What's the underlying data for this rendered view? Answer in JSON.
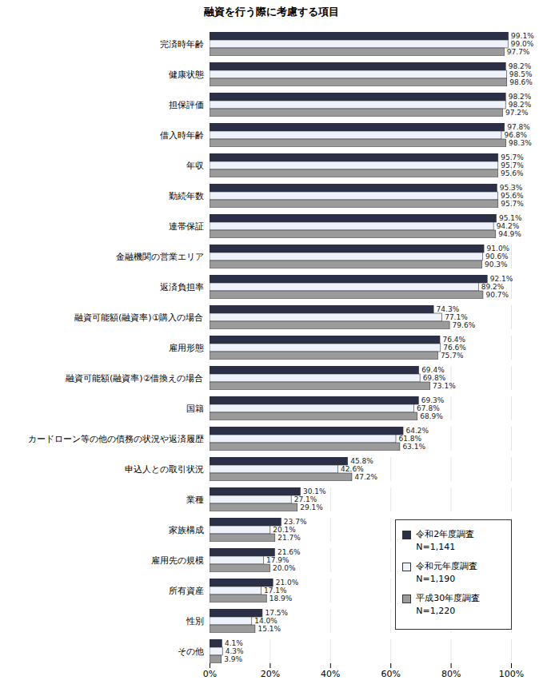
{
  "chart_data": {
    "type": "bar",
    "title": "融資を行う際に考慮する項目",
    "orientation": "horizontal",
    "categories": [
      "完済時年齢",
      "健康状態",
      "担保評価",
      "借入時年齢",
      "年収",
      "勤続年数",
      "連帯保証",
      "金融機関の営業エリア",
      "返済負担率",
      "融資可能額(融資率)①購入の場合",
      "雇用形態",
      "融資可能額(融資率)②借換えの場合",
      "国籍",
      "カードローン等の他の債務の状況や返済履歴",
      "申込人との取引状況",
      "業種",
      "家族構成",
      "雇用先の規模",
      "所有資産",
      "性別",
      "その他"
    ],
    "series": [
      {
        "name": "令和2年度調査\nN=1,141",
        "color": "#2b3047",
        "values": [
          99.1,
          98.2,
          98.2,
          97.8,
          95.7,
          95.3,
          95.1,
          91.0,
          92.1,
          74.3,
          76.4,
          69.4,
          69.3,
          64.2,
          45.8,
          30.1,
          23.7,
          21.6,
          21.0,
          17.5,
          4.1
        ],
        "value_labels": [
          "99.1%",
          "98.2%",
          "98.2%",
          "97.8%",
          "95.7%",
          "95.3%",
          "95.1%",
          "91.0%",
          "92.1%",
          "74.3%",
          "76.4%",
          "69.4%",
          "69.3%",
          "64.2%",
          "45.8%",
          "30.1%",
          "23.7%",
          "21.6%",
          "21.0%",
          "17.5%",
          "4.1%"
        ]
      },
      {
        "name": "令和元年度調査\nN=1,190",
        "color": "#eef3fb",
        "values": [
          99.0,
          98.5,
          98.2,
          96.8,
          95.7,
          95.6,
          94.2,
          90.6,
          89.2,
          77.1,
          76.6,
          69.8,
          67.8,
          61.8,
          42.6,
          27.1,
          20.1,
          17.9,
          17.1,
          14.0,
          4.3
        ],
        "value_labels": [
          "99.0%",
          "98.5%",
          "98.2%",
          "96.8%",
          "95.7%",
          "95.6%",
          "94.2%",
          "90.6%",
          "89.2%",
          "77.1%",
          "76.6%",
          "69.8%",
          "67.8%",
          "61.8%",
          "42.6%",
          "27.1%",
          "20.1%",
          "17.9%",
          "17.1%",
          "14.0%",
          "4.3%"
        ]
      },
      {
        "name": "平成30年度調査\nN=1,220",
        "color": "#9b9b9b",
        "values": [
          97.7,
          98.6,
          97.2,
          98.3,
          95.6,
          95.7,
          94.9,
          90.3,
          90.7,
          79.6,
          75.7,
          73.1,
          68.9,
          63.1,
          47.2,
          29.1,
          21.7,
          20.0,
          18.9,
          15.1,
          3.9
        ],
        "value_labels": [
          "97.7%",
          "98.6%",
          "97.2%",
          "98.3%",
          "95.6%",
          "95.7%",
          "94.9%",
          "90.3%",
          "90.7%",
          "79.6%",
          "75.7%",
          "73.1%",
          "68.9%",
          "63.1%",
          "47.2%",
          "29.1%",
          "21.7%",
          "20.0%",
          "18.9%",
          "15.1%",
          "3.9%"
        ]
      }
    ],
    "xlim": [
      0,
      100
    ],
    "xticks": [
      {
        "value": 0,
        "label": "0%"
      },
      {
        "value": 20,
        "label": "20%"
      },
      {
        "value": 40,
        "label": "40%"
      },
      {
        "value": 60,
        "label": "60%"
      },
      {
        "value": 80,
        "label": "80%"
      },
      {
        "value": 100,
        "label": "100%"
      }
    ],
    "grid": true,
    "data_labels": true,
    "legend": "bottom-right"
  }
}
